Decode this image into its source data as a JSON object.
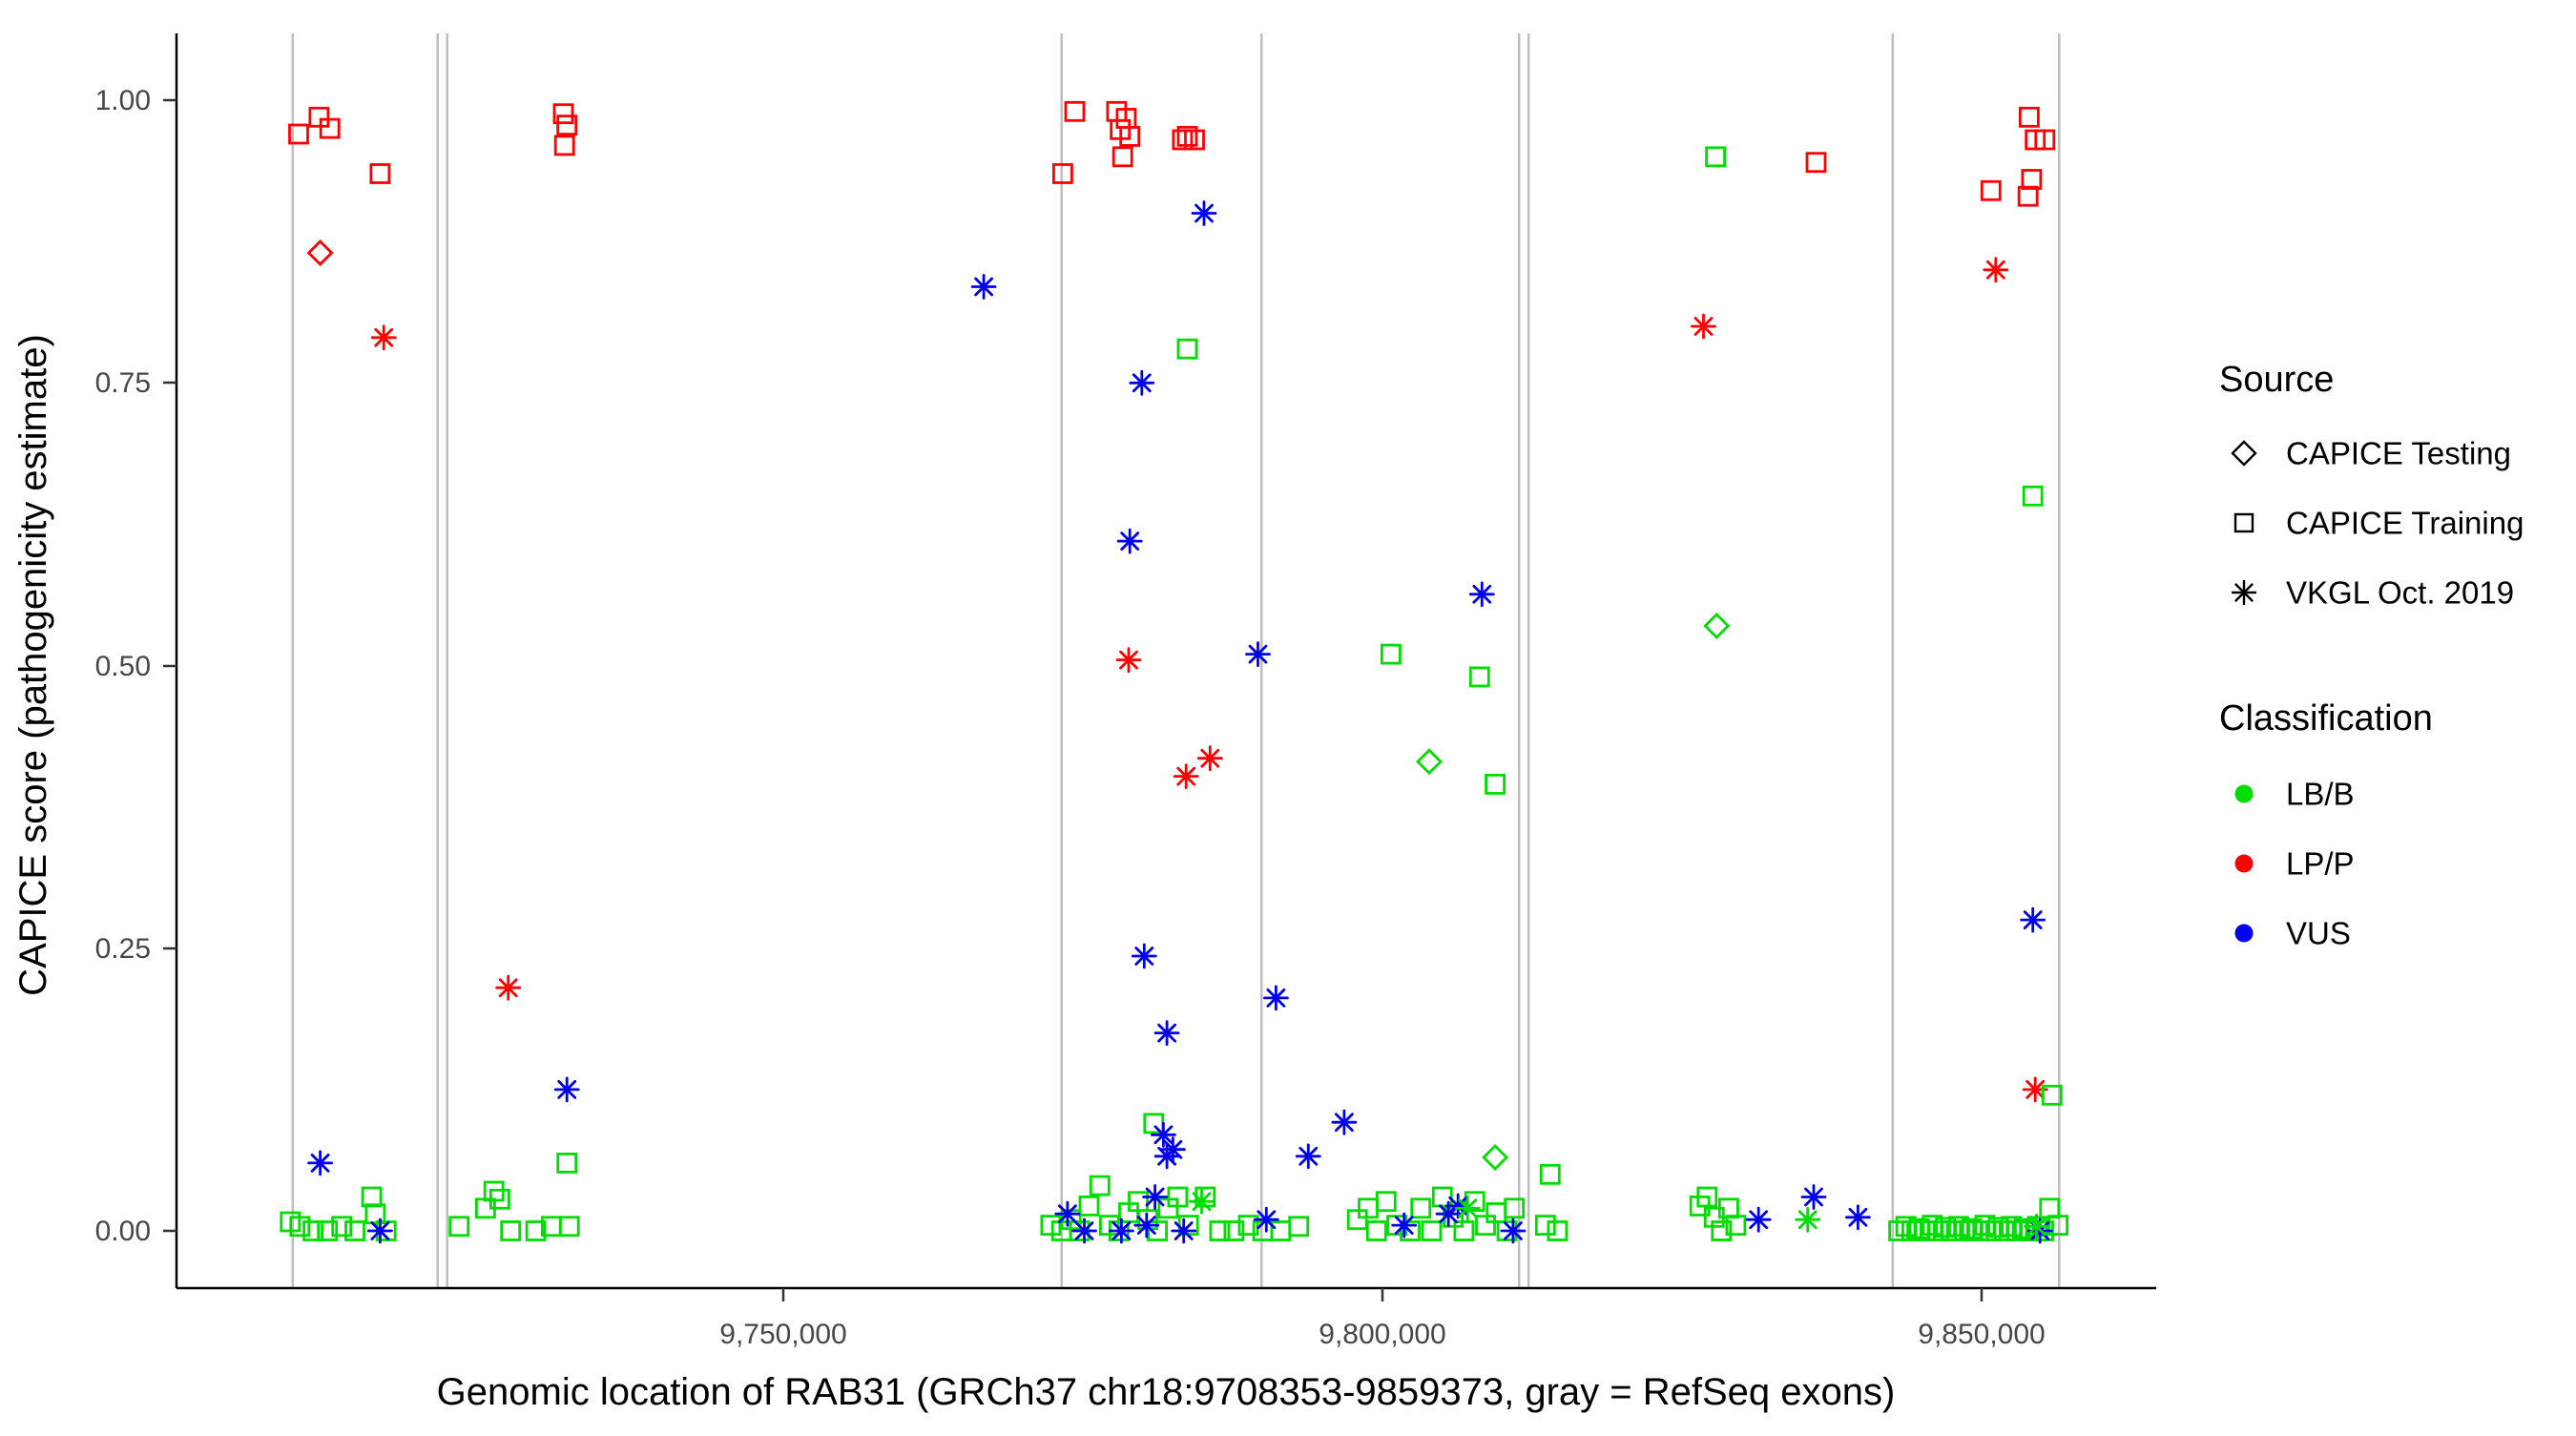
{
  "figure": {
    "x_axis": {
      "title": "Genomic location of RAB31 (GRCh37 chr18:9708353-9859373, gray = RefSeq exons)",
      "ticks": [
        {
          "value": 9750000,
          "label": "9,750,000"
        },
        {
          "value": 9800000,
          "label": "9,800,000"
        },
        {
          "value": 9850000,
          "label": "9,850,000"
        }
      ]
    },
    "y_axis": {
      "title": "CAPICE score (pathogenicity estimate)",
      "ticks": [
        {
          "value": 0.0,
          "label": "0.00"
        },
        {
          "value": 0.25,
          "label": "0.25"
        },
        {
          "value": 0.5,
          "label": "0.50"
        },
        {
          "value": 0.75,
          "label": "0.75"
        },
        {
          "value": 1.0,
          "label": "1.00"
        }
      ]
    },
    "legend": {
      "source": {
        "title": "Source",
        "items": [
          {
            "label": "CAPICE Testing",
            "marker": "diamond"
          },
          {
            "label": "CAPICE Training",
            "marker": "square"
          },
          {
            "label": "VKGL Oct. 2019",
            "marker": "asterisk"
          }
        ]
      },
      "classification": {
        "title": "Classification",
        "items": [
          {
            "label": "LB/B",
            "color": "#00DD00"
          },
          {
            "label": "LP/P",
            "color": "#FF0000"
          },
          {
            "label": "VUS",
            "color": "#0000EE"
          }
        ]
      }
    }
  },
  "chart_data": {
    "type": "scatter",
    "title": "",
    "xlabel": "Genomic location of RAB31 (GRCh37 chr18:9708353-9859373, gray = RefSeq exons)",
    "ylabel": "CAPICE score (pathogenicity estimate)",
    "xlim": [
      9699300,
      9864600
    ],
    "ylim": [
      0,
      1
    ],
    "grid": false,
    "legend_position": "right",
    "exon_color": "#BEBEBE",
    "exon_positions": [
      9709000,
      9721100,
      9721900,
      9773200,
      9789900,
      9811400,
      9812200,
      9842600,
      9856500
    ],
    "colors": {
      "LB/B": "#00DD00",
      "LP/P": "#FF0000",
      "VUS": "#0000EE"
    },
    "sources_by_marker": {
      "diamond": "CAPICE Testing",
      "square": "CAPICE Training",
      "asterisk": "VKGL Oct. 2019"
    },
    "point_format": [
      "genomic_position",
      "capice_score",
      "classification",
      "marker"
    ],
    "points": [
      [
        9709500,
        0.97,
        "LP/P",
        "square"
      ],
      [
        9711200,
        0.985,
        "LP/P",
        "square"
      ],
      [
        9712100,
        0.975,
        "LP/P",
        "square"
      ],
      [
        9716300,
        0.935,
        "LP/P",
        "square"
      ],
      [
        9711300,
        0.865,
        "LP/P",
        "diamond"
      ],
      [
        9716600,
        0.79,
        "LP/P",
        "asterisk"
      ],
      [
        9711300,
        0.06,
        "VUS",
        "asterisk"
      ],
      [
        9708800,
        0.008,
        "LB/B",
        "square"
      ],
      [
        9709600,
        0.004,
        "LB/B",
        "square"
      ],
      [
        9710700,
        0,
        "LB/B",
        "square"
      ],
      [
        9711900,
        0,
        "LB/B",
        "square"
      ],
      [
        9713100,
        0.004,
        "LB/B",
        "square"
      ],
      [
        9714200,
        0,
        "LB/B",
        "square"
      ],
      [
        9715600,
        0.03,
        "LB/B",
        "square"
      ],
      [
        9715900,
        0.015,
        "LB/B",
        "square"
      ],
      [
        9716800,
        0,
        "LB/B",
        "square"
      ],
      [
        9716300,
        0,
        "VUS",
        "asterisk"
      ],
      [
        9727000,
        0.215,
        "LP/P",
        "asterisk"
      ],
      [
        9731600,
        0.988,
        "LP/P",
        "square"
      ],
      [
        9731900,
        0.978,
        "LP/P",
        "square"
      ],
      [
        9731700,
        0.96,
        "LP/P",
        "square"
      ],
      [
        9731900,
        0.125,
        "VUS",
        "asterisk"
      ],
      [
        9731900,
        0.06,
        "LB/B",
        "square"
      ],
      [
        9722900,
        0.004,
        "LB/B",
        "square"
      ],
      [
        9725100,
        0.02,
        "LB/B",
        "square"
      ],
      [
        9725800,
        0.035,
        "LB/B",
        "square"
      ],
      [
        9726300,
        0.028,
        "LB/B",
        "square"
      ],
      [
        9727200,
        0,
        "LB/B",
        "square"
      ],
      [
        9729300,
        0,
        "LB/B",
        "square"
      ],
      [
        9730600,
        0.004,
        "LB/B",
        "square"
      ],
      [
        9732100,
        0.004,
        "LB/B",
        "square"
      ],
      [
        9766700,
        0.835,
        "VUS",
        "asterisk"
      ],
      [
        9774300,
        0.99,
        "LP/P",
        "square"
      ],
      [
        9777800,
        0.99,
        "LP/P",
        "square"
      ],
      [
        9778600,
        0.984,
        "LP/P",
        "square"
      ],
      [
        9778100,
        0.974,
        "LP/P",
        "square"
      ],
      [
        9778900,
        0.968,
        "LP/P",
        "square"
      ],
      [
        9778300,
        0.95,
        "LP/P",
        "square"
      ],
      [
        9773300,
        0.935,
        "LP/P",
        "square"
      ],
      [
        9783300,
        0.965,
        "LP/P",
        "square"
      ],
      [
        9783700,
        0.968,
        "LP/P",
        "square"
      ],
      [
        9784300,
        0.965,
        "LP/P",
        "square"
      ],
      [
        9785100,
        0.9,
        "VUS",
        "asterisk"
      ],
      [
        9783700,
        0.78,
        "LB/B",
        "square"
      ],
      [
        9779900,
        0.75,
        "VUS",
        "asterisk"
      ],
      [
        9778900,
        0.61,
        "VUS",
        "asterisk"
      ],
      [
        9778800,
        0.505,
        "LP/P",
        "asterisk"
      ],
      [
        9789600,
        0.51,
        "VUS",
        "asterisk"
      ],
      [
        9783600,
        0.402,
        "LP/P",
        "asterisk"
      ],
      [
        9785600,
        0.418,
        "LP/P",
        "asterisk"
      ],
      [
        9780100,
        0.243,
        "VUS",
        "asterisk"
      ],
      [
        9782000,
        0.175,
        "VUS",
        "asterisk"
      ],
      [
        9791100,
        0.206,
        "VUS",
        "asterisk"
      ],
      [
        9780900,
        0.095,
        "LB/B",
        "square"
      ],
      [
        9781700,
        0.085,
        "VUS",
        "asterisk"
      ],
      [
        9782000,
        0.066,
        "VUS",
        "asterisk"
      ],
      [
        9782500,
        0.072,
        "VUS",
        "asterisk"
      ],
      [
        9793800,
        0.066,
        "VUS",
        "asterisk"
      ],
      [
        9796800,
        0.096,
        "VUS",
        "asterisk"
      ],
      [
        9772300,
        0.005,
        "LB/B",
        "square"
      ],
      [
        9773200,
        0,
        "LB/B",
        "square"
      ],
      [
        9774000,
        0.01,
        "LB/B",
        "square"
      ],
      [
        9774700,
        0,
        "LB/B",
        "square"
      ],
      [
        9775500,
        0.022,
        "LB/B",
        "square"
      ],
      [
        9776400,
        0.04,
        "LB/B",
        "square"
      ],
      [
        9777200,
        0.005,
        "LB/B",
        "square"
      ],
      [
        9778000,
        0,
        "LB/B",
        "square"
      ],
      [
        9778800,
        0.016,
        "LB/B",
        "square"
      ],
      [
        9779600,
        0.026,
        "LB/B",
        "square"
      ],
      [
        9780400,
        0.01,
        "LB/B",
        "square"
      ],
      [
        9781200,
        0,
        "LB/B",
        "square"
      ],
      [
        9782100,
        0.02,
        "LB/B",
        "square"
      ],
      [
        9782900,
        0.03,
        "LB/B",
        "square"
      ],
      [
        9783800,
        0.005,
        "LB/B",
        "square"
      ],
      [
        9785200,
        0.03,
        "LB/B",
        "square"
      ],
      [
        9786400,
        0,
        "LB/B",
        "square"
      ],
      [
        9787600,
        0,
        "LB/B",
        "square"
      ],
      [
        9788800,
        0.005,
        "LB/B",
        "square"
      ],
      [
        9790000,
        0,
        "LB/B",
        "square"
      ],
      [
        9791500,
        0,
        "LB/B",
        "square"
      ],
      [
        9793000,
        0.004,
        "LB/B",
        "square"
      ],
      [
        9773700,
        0.015,
        "VUS",
        "asterisk"
      ],
      [
        9775100,
        0,
        "VUS",
        "asterisk"
      ],
      [
        9778200,
        0,
        "VUS",
        "asterisk"
      ],
      [
        9780300,
        0.005,
        "VUS",
        "asterisk"
      ],
      [
        9781000,
        0.03,
        "VUS",
        "asterisk"
      ],
      [
        9783400,
        0,
        "VUS",
        "asterisk"
      ],
      [
        9790300,
        0.01,
        "VUS",
        "asterisk"
      ],
      [
        9784900,
        0.026,
        "LB/B",
        "asterisk"
      ],
      [
        9800700,
        0.51,
        "LB/B",
        "square"
      ],
      [
        9808300,
        0.563,
        "VUS",
        "asterisk"
      ],
      [
        9808100,
        0.49,
        "LB/B",
        "square"
      ],
      [
        9803900,
        0.415,
        "LB/B",
        "diamond"
      ],
      [
        9809400,
        0.395,
        "LB/B",
        "square"
      ],
      [
        9809400,
        0.065,
        "LB/B",
        "diamond"
      ],
      [
        9797900,
        0.01,
        "LB/B",
        "square"
      ],
      [
        9798800,
        0.02,
        "LB/B",
        "square"
      ],
      [
        9799500,
        0,
        "LB/B",
        "square"
      ],
      [
        9800300,
        0.026,
        "LB/B",
        "square"
      ],
      [
        9801200,
        0.005,
        "LB/B",
        "square"
      ],
      [
        9802300,
        0,
        "LB/B",
        "square"
      ],
      [
        9803200,
        0.02,
        "LB/B",
        "square"
      ],
      [
        9804100,
        0,
        "LB/B",
        "square"
      ],
      [
        9805000,
        0.03,
        "LB/B",
        "square"
      ],
      [
        9805900,
        0.012,
        "LB/B",
        "square"
      ],
      [
        9806800,
        0,
        "LB/B",
        "square"
      ],
      [
        9807700,
        0.026,
        "LB/B",
        "square"
      ],
      [
        9808600,
        0.005,
        "LB/B",
        "square"
      ],
      [
        9809500,
        0.016,
        "LB/B",
        "square"
      ],
      [
        9810400,
        0,
        "LB/B",
        "square"
      ],
      [
        9811000,
        0.02,
        "LB/B",
        "square"
      ],
      [
        9801800,
        0.005,
        "VUS",
        "asterisk"
      ],
      [
        9805500,
        0.015,
        "VUS",
        "asterisk"
      ],
      [
        9806300,
        0.022,
        "VUS",
        "asterisk"
      ],
      [
        9810900,
        0,
        "VUS",
        "asterisk"
      ],
      [
        9807100,
        0.02,
        "LB/B",
        "asterisk"
      ],
      [
        9814000,
        0.05,
        "LB/B",
        "square"
      ],
      [
        9813600,
        0.005,
        "LB/B",
        "square"
      ],
      [
        9814600,
        0,
        "LB/B",
        "square"
      ],
      [
        9827800,
        0.95,
        "LB/B",
        "square"
      ],
      [
        9836200,
        0.945,
        "LP/P",
        "square"
      ],
      [
        9826800,
        0.8,
        "LP/P",
        "asterisk"
      ],
      [
        9827900,
        0.535,
        "LB/B",
        "diamond"
      ],
      [
        9826500,
        0.022,
        "LB/B",
        "square"
      ],
      [
        9827100,
        0.03,
        "LB/B",
        "square"
      ],
      [
        9827700,
        0.012,
        "LB/B",
        "square"
      ],
      [
        9828300,
        0,
        "LB/B",
        "square"
      ],
      [
        9828900,
        0.02,
        "LB/B",
        "square"
      ],
      [
        9829500,
        0.005,
        "LB/B",
        "square"
      ],
      [
        9831400,
        0.01,
        "VUS",
        "asterisk"
      ],
      [
        9835500,
        0.01,
        "LB/B",
        "asterisk"
      ],
      [
        9836000,
        0.03,
        "VUS",
        "asterisk"
      ],
      [
        9839700,
        0.012,
        "VUS",
        "asterisk"
      ],
      [
        9850800,
        0.92,
        "LP/P",
        "square"
      ],
      [
        9854000,
        0.985,
        "LP/P",
        "square"
      ],
      [
        9854500,
        0.965,
        "LP/P",
        "square"
      ],
      [
        9855300,
        0.965,
        "LP/P",
        "square"
      ],
      [
        9854200,
        0.93,
        "LP/P",
        "square"
      ],
      [
        9853900,
        0.915,
        "LP/P",
        "square"
      ],
      [
        9851200,
        0.85,
        "LP/P",
        "asterisk"
      ],
      [
        9854300,
        0.65,
        "LB/B",
        "square"
      ],
      [
        9854300,
        0.275,
        "VUS",
        "asterisk"
      ],
      [
        9854500,
        0.125,
        "LP/P",
        "asterisk"
      ],
      [
        9855900,
        0.12,
        "LB/B",
        "square"
      ],
      [
        9843100,
        0,
        "LB/B",
        "square"
      ],
      [
        9843700,
        0.004,
        "LB/B",
        "square"
      ],
      [
        9844200,
        0,
        "LB/B",
        "square"
      ],
      [
        9844800,
        0.002,
        "LB/B",
        "square"
      ],
      [
        9845300,
        0,
        "LB/B",
        "square"
      ],
      [
        9845900,
        0.005,
        "LB/B",
        "square"
      ],
      [
        9846400,
        0,
        "LB/B",
        "square"
      ],
      [
        9847000,
        0.003,
        "LB/B",
        "square"
      ],
      [
        9847500,
        0,
        "LB/B",
        "square"
      ],
      [
        9848100,
        0.004,
        "LB/B",
        "square"
      ],
      [
        9848600,
        0,
        "LB/B",
        "square"
      ],
      [
        9849200,
        0.002,
        "LB/B",
        "square"
      ],
      [
        9849700,
        0,
        "LB/B",
        "square"
      ],
      [
        9850300,
        0.005,
        "LB/B",
        "square"
      ],
      [
        9850800,
        0,
        "LB/B",
        "square"
      ],
      [
        9851400,
        0.003,
        "LB/B",
        "square"
      ],
      [
        9851900,
        0,
        "LB/B",
        "square"
      ],
      [
        9852500,
        0.004,
        "LB/B",
        "square"
      ],
      [
        9853000,
        0,
        "LB/B",
        "square"
      ],
      [
        9853600,
        0.002,
        "LB/B",
        "square"
      ],
      [
        9854100,
        0,
        "LB/B",
        "square"
      ],
      [
        9854700,
        0.004,
        "LB/B",
        "square"
      ],
      [
        9855200,
        0,
        "LB/B",
        "square"
      ],
      [
        9855700,
        0.02,
        "LB/B",
        "square"
      ],
      [
        9856400,
        0.005,
        "LB/B",
        "square"
      ],
      [
        9854900,
        0,
        "VUS",
        "asterisk"
      ],
      [
        9854600,
        0.004,
        "LB/B",
        "asterisk"
      ]
    ]
  }
}
